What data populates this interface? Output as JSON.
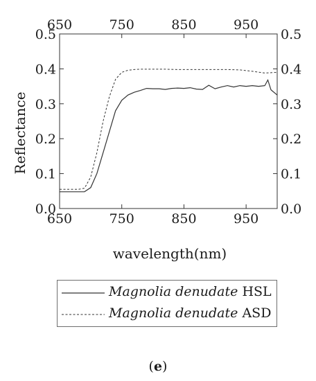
{
  "chart_data": {
    "type": "line",
    "xlabel": "wavelength(nm)",
    "ylabel": "Reflectance",
    "xlim": [
      650,
      1000
    ],
    "ylim": [
      0.0,
      0.5
    ],
    "x_ticks": [
      650,
      750,
      850,
      950
    ],
    "y_ticks": [
      "0.0",
      "0.1",
      "0.2",
      "0.3",
      "0.4",
      "0.5"
    ],
    "axes_mirrored_top_right": true,
    "grid": false,
    "legend_position": "below",
    "series": [
      {
        "name": "Magnolia denudate HSL",
        "style": "solid",
        "x": [
          650,
          660,
          670,
          680,
          690,
          700,
          710,
          720,
          730,
          740,
          750,
          760,
          770,
          780,
          790,
          800,
          810,
          820,
          830,
          840,
          850,
          860,
          870,
          880,
          890,
          900,
          910,
          920,
          930,
          940,
          950,
          960,
          970,
          980,
          985,
          990,
          1000
        ],
        "y": [
          0.048,
          0.048,
          0.048,
          0.048,
          0.048,
          0.06,
          0.1,
          0.16,
          0.22,
          0.28,
          0.31,
          0.325,
          0.333,
          0.338,
          0.344,
          0.343,
          0.343,
          0.341,
          0.344,
          0.345,
          0.344,
          0.346,
          0.342,
          0.341,
          0.353,
          0.343,
          0.348,
          0.352,
          0.348,
          0.352,
          0.35,
          0.352,
          0.35,
          0.352,
          0.368,
          0.34,
          0.325
        ],
        "label_prefix": "Magnolia denudate",
        "label_suffix": "HSL"
      },
      {
        "name": "Magnolia denudate ASD",
        "style": "dashed",
        "x": [
          650,
          660,
          670,
          680,
          690,
          700,
          710,
          720,
          730,
          740,
          750,
          760,
          770,
          780,
          790,
          800,
          820,
          840,
          860,
          880,
          900,
          920,
          940,
          960,
          980,
          1000
        ],
        "y": [
          0.055,
          0.055,
          0.055,
          0.055,
          0.058,
          0.09,
          0.16,
          0.25,
          0.32,
          0.37,
          0.39,
          0.396,
          0.398,
          0.399,
          0.399,
          0.399,
          0.399,
          0.398,
          0.398,
          0.398,
          0.398,
          0.398,
          0.397,
          0.393,
          0.388,
          0.39
        ],
        "label_prefix": "Magnolia denudate",
        "label_suffix": "ASD"
      }
    ]
  },
  "caption": {
    "open": "(",
    "letter": "e",
    "close": ")"
  }
}
